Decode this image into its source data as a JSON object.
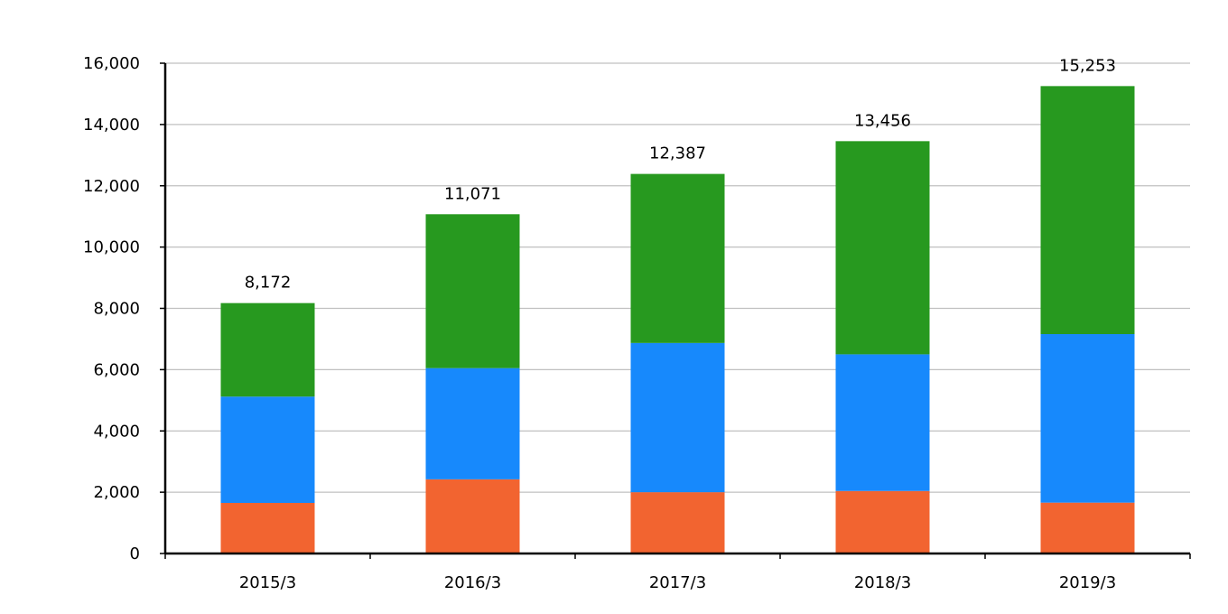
{
  "chart_data": {
    "type": "bar",
    "stacked": true,
    "categories": [
      "2015/3",
      "2016/3",
      "2017/3",
      "2018/3",
      "2019/3"
    ],
    "series": [
      {
        "values": [
          1650,
          2420,
          2000,
          2040,
          1660
        ],
        "color": "#f26430"
      },
      {
        "values": [
          3470,
          3630,
          4870,
          4460,
          5500
        ],
        "color": "#1789fc"
      },
      {
        "values": [
          3052,
          5021,
          5517,
          6956,
          8093
        ],
        "color": "#27991f"
      }
    ],
    "totals": [
      8172,
      11071,
      12387,
      13456,
      15253
    ],
    "total_labels": [
      "8,172",
      "11,071",
      "12,387",
      "13,456",
      "15,253"
    ],
    "ylim": [
      0,
      16000
    ],
    "y_ticks": [
      0,
      2000,
      4000,
      6000,
      8000,
      10000,
      12000,
      14000,
      16000
    ],
    "y_tick_labels": [
      "0",
      "2,000",
      "4,000",
      "6,000",
      "8,000",
      "10,000",
      "12,000",
      "14,000",
      "16,000"
    ],
    "grid": true,
    "gridline_color": "#c0c0c0",
    "legend": "none",
    "title": "",
    "xlabel": "",
    "ylabel": ""
  }
}
